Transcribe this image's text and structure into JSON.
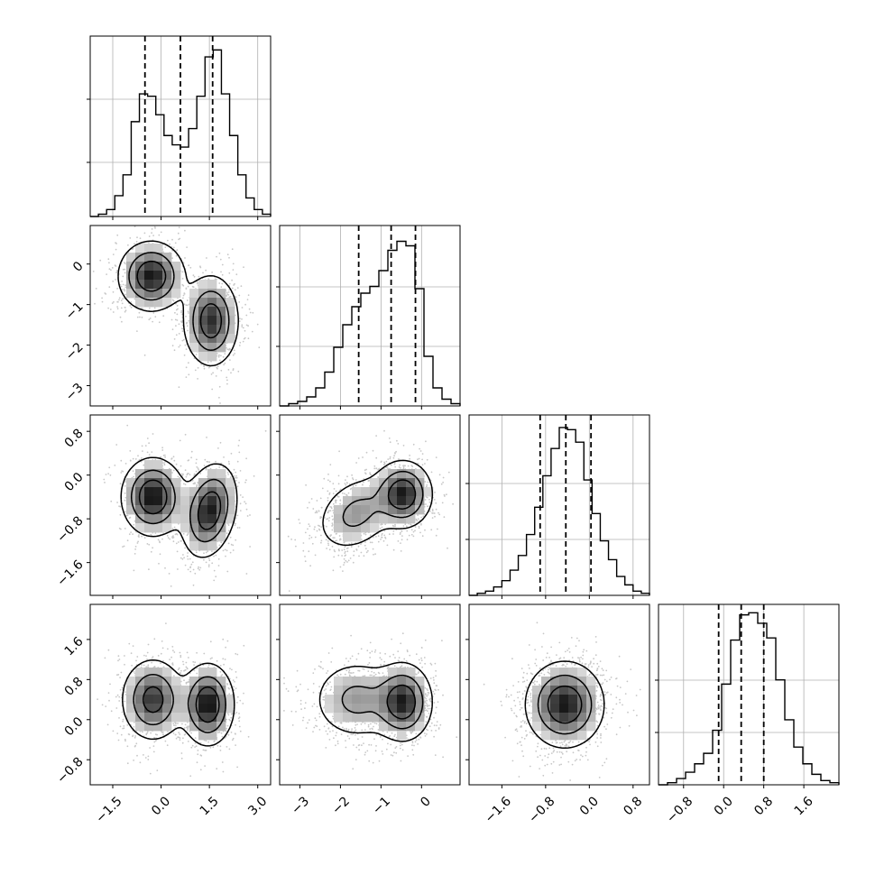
{
  "chart_data": {
    "type": "corner",
    "n_params": 4,
    "quantile_lines": "dashed",
    "grid": true,
    "params": [
      {
        "range": [
          -2.2,
          3.4
        ],
        "ticks": [
          -1.5,
          0.0,
          1.5,
          3.0
        ],
        "tick_labels": [
          "−1.5",
          "0.0",
          "1.5",
          "3.0"
        ],
        "quantiles": [
          -0.5,
          0.6,
          1.6
        ],
        "hist": [
          0,
          1,
          3,
          9,
          18,
          41,
          53,
          52,
          44,
          35,
          31,
          30,
          38,
          52,
          69,
          72,
          53,
          35,
          18,
          8,
          3,
          1
        ],
        "hist_ymax": 78,
        "hist_grid_fracs": [
          0.3,
          0.65
        ]
      },
      {
        "range": [
          -3.5,
          0.95
        ],
        "ticks": [
          -3,
          -2,
          -1,
          0
        ],
        "tick_labels": [
          "−3",
          "−2",
          "−1",
          "0"
        ],
        "quantiles": [
          -1.55,
          -0.75,
          -0.15
        ],
        "hist": [
          0,
          1,
          2,
          4,
          8,
          15,
          26,
          36,
          44,
          50,
          53,
          60,
          69,
          73,
          71,
          52,
          22,
          8,
          3,
          1
        ],
        "hist_ymax": 80,
        "hist_grid_fracs": [
          0.33,
          0.66
        ]
      },
      {
        "range": [
          -2.2,
          1.1
        ],
        "ticks": [
          -1.6,
          -0.8,
          0.0,
          0.8
        ],
        "tick_labels": [
          "−1.6",
          "−0.8",
          "0.0",
          "0.8"
        ],
        "quantiles": [
          -0.9,
          -0.43,
          0.03
        ],
        "hist": [
          0,
          1,
          2,
          4,
          7,
          12,
          19,
          29,
          42,
          57,
          70,
          80,
          79,
          73,
          55,
          39,
          26,
          17,
          9,
          5,
          2,
          1
        ],
        "hist_ymax": 86,
        "hist_grid_fracs": [
          0.31,
          0.62
        ]
      },
      {
        "range": [
          -1.3,
          2.3
        ],
        "ticks": [
          -0.8,
          0.0,
          0.8,
          1.6
        ],
        "tick_labels": [
          "−0.8",
          "0.0",
          "0.8",
          "1.6"
        ],
        "quantiles": [
          -0.1,
          0.35,
          0.8
        ],
        "hist": [
          0,
          1,
          3,
          6,
          10,
          15,
          26,
          48,
          69,
          81,
          82,
          77,
          70,
          50,
          31,
          18,
          10,
          5,
          2,
          1
        ],
        "hist_ymax": 86,
        "hist_grid_fracs": [
          0.29,
          0.58
        ]
      }
    ],
    "blobs": [
      {
        "params": [
          0,
          1
        ],
        "components": [
          {
            "mx": -0.3,
            "my": -0.3,
            "sx": 0.5,
            "sy": 0.42,
            "rho": 0.0,
            "w": 0.5
          },
          {
            "mx": 1.55,
            "my": -1.4,
            "sx": 0.42,
            "sy": 0.55,
            "rho": 0.0,
            "w": 0.5
          }
        ]
      },
      {
        "params": [
          0,
          2
        ],
        "components": [
          {
            "mx": -0.25,
            "my": -0.4,
            "sx": 0.48,
            "sy": 0.35,
            "rho": 0.0,
            "w": 0.5
          },
          {
            "mx": 1.5,
            "my": -0.65,
            "sx": 0.42,
            "sy": 0.42,
            "rho": 0.25,
            "w": 0.5
          }
        ]
      },
      {
        "params": [
          0,
          3
        ],
        "components": [
          {
            "mx": -0.25,
            "my": 0.4,
            "sx": 0.48,
            "sy": 0.4,
            "rho": 0.0,
            "w": 0.5
          },
          {
            "mx": 1.45,
            "my": 0.3,
            "sx": 0.4,
            "sy": 0.4,
            "rho": 0.0,
            "w": 0.5
          }
        ]
      },
      {
        "params": [
          1,
          2
        ],
        "components": [
          {
            "mx": -1.6,
            "my": -0.7,
            "sx": 0.5,
            "sy": 0.35,
            "rho": 0.3,
            "w": 0.45
          },
          {
            "mx": -0.45,
            "my": -0.35,
            "sx": 0.35,
            "sy": 0.3,
            "rho": 0.0,
            "w": 0.55
          }
        ]
      },
      {
        "params": [
          1,
          3
        ],
        "components": [
          {
            "mx": -1.6,
            "my": 0.4,
            "sx": 0.55,
            "sy": 0.4,
            "rho": 0.0,
            "w": 0.45
          },
          {
            "mx": -0.45,
            "my": 0.35,
            "sx": 0.35,
            "sy": 0.38,
            "rho": 0.0,
            "w": 0.55
          }
        ]
      },
      {
        "params": [
          2,
          3
        ],
        "components": [
          {
            "mx": -0.45,
            "my": 0.3,
            "sx": 0.35,
            "sy": 0.42,
            "rho": 0.0,
            "w": 1.0
          }
        ]
      }
    ]
  }
}
